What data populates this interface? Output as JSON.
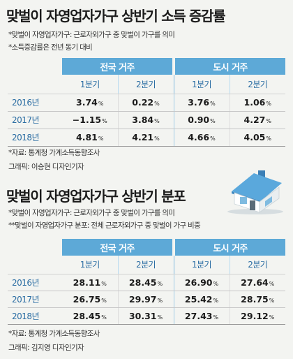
{
  "section1": {
    "title": "맞벌이 자영업자가구 상반기 소득 증감률",
    "notes": [
      "*맞벌이 자영업자가구: 근로자외가구 중 맞벌이 가구를 의미",
      "*소득증감률은 전년 동기 대비"
    ],
    "groups": [
      "전국 거주",
      "도시 거주"
    ],
    "quarters": [
      "1분기",
      "2분기",
      "1분기",
      "2분기"
    ],
    "rows": [
      {
        "year": "2016년",
        "values": [
          "3.74",
          "0.22",
          "3.76",
          "1.06"
        ]
      },
      {
        "year": "2017년",
        "values": [
          "−1.15",
          "3.84",
          "0.90",
          "4.27"
        ]
      },
      {
        "year": "2018년",
        "values": [
          "4.81",
          "4.21",
          "4.66",
          "4.05"
        ]
      }
    ],
    "source": "*자료: 통계청 가계소득동향조사",
    "graphic": "그래픽: 이승현 디자인기자"
  },
  "section2": {
    "title": "맞벌이 자영업자가구 상반기 분포",
    "notes": [
      "*맞벌이 자영업자가구: 근로자외가구 중 맞벌이 가구를 의미",
      "**맞벌이 자영업자가구 분포: 전체 근로자외가구 중 맞벌이 가구 비중"
    ],
    "groups": [
      "전국 거주",
      "도시 거주"
    ],
    "quarters": [
      "1분기",
      "2분기",
      "1분기",
      "2분기"
    ],
    "rows": [
      {
        "year": "2016년",
        "values": [
          "28.11",
          "28.45",
          "26.90",
          "27.64"
        ]
      },
      {
        "year": "2017년",
        "values": [
          "26.75",
          "29.97",
          "25.42",
          "28.75"
        ]
      },
      {
        "year": "2018년",
        "values": [
          "28.45",
          "30.31",
          "27.43",
          "29.12"
        ]
      }
    ],
    "source": "*자료: 통계청 가계소득동향조사",
    "graphic": "그래픽: 김지영 디자인기자"
  },
  "unit": "%",
  "icons": {
    "illustration": "house-icon"
  },
  "colors": {
    "header": "#5da9d7",
    "year_text": "#2b6da3",
    "background": "#f3f4f1"
  }
}
